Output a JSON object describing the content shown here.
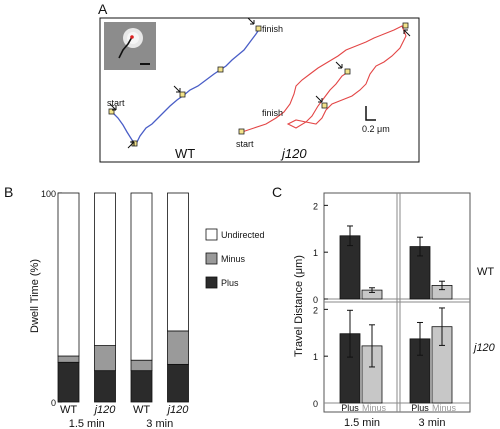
{
  "panel_a": {
    "letter": "A",
    "wt_label": "WT",
    "mut_label": "j120",
    "start_label": "start",
    "finish_label": "finish",
    "scale_label": "0.2 μm"
  },
  "panel_b": {
    "letter": "B",
    "legend": [
      "Undirected",
      "Minus",
      "Plus"
    ]
  },
  "panel_c": {
    "letter": "C",
    "wt_label": "WT",
    "mut_label": "j120",
    "col_labels": [
      "Plus",
      "Minus"
    ]
  },
  "chart_data": [
    {
      "type": "bar",
      "stacked": true,
      "ylabel": "Dwell Time (%)",
      "ylim": [
        0,
        100
      ],
      "yticks": [
        0,
        100
      ],
      "categories": [
        "WT",
        "j120",
        "WT",
        "j120"
      ],
      "groups": [
        "1.5 min",
        "3 min"
      ],
      "series": [
        {
          "name": "Plus",
          "values": [
            19,
            15,
            15,
            18
          ],
          "color": "#2b2b2b"
        },
        {
          "name": "Minus",
          "values": [
            3,
            12,
            5,
            16
          ],
          "color": "#9a9a9a"
        },
        {
          "name": "Undirected",
          "values": [
            78,
            73,
            80,
            66
          ],
          "color": "#ffffff"
        }
      ]
    },
    {
      "type": "bar",
      "ylabel": "Travel Distance (μm)",
      "ylim": [
        0,
        2.2
      ],
      "yticks": [
        0,
        1,
        2
      ],
      "groups": [
        "1.5 min",
        "3 min"
      ],
      "categories": [
        "Plus",
        "Minus"
      ],
      "series": [
        {
          "name": "WT",
          "values": [
            [
              1.35,
              0.19
            ],
            [
              1.12,
              0.29
            ]
          ],
          "errors": [
            [
              0.21,
              0.05
            ],
            [
              0.2,
              0.09
            ]
          ]
        },
        {
          "name": "j120",
          "values": [
            [
              1.48,
              1.22
            ],
            [
              1.37,
              1.63
            ]
          ],
          "errors": [
            [
              0.5,
              0.45
            ],
            [
              0.35,
              0.4
            ]
          ]
        }
      ]
    }
  ]
}
